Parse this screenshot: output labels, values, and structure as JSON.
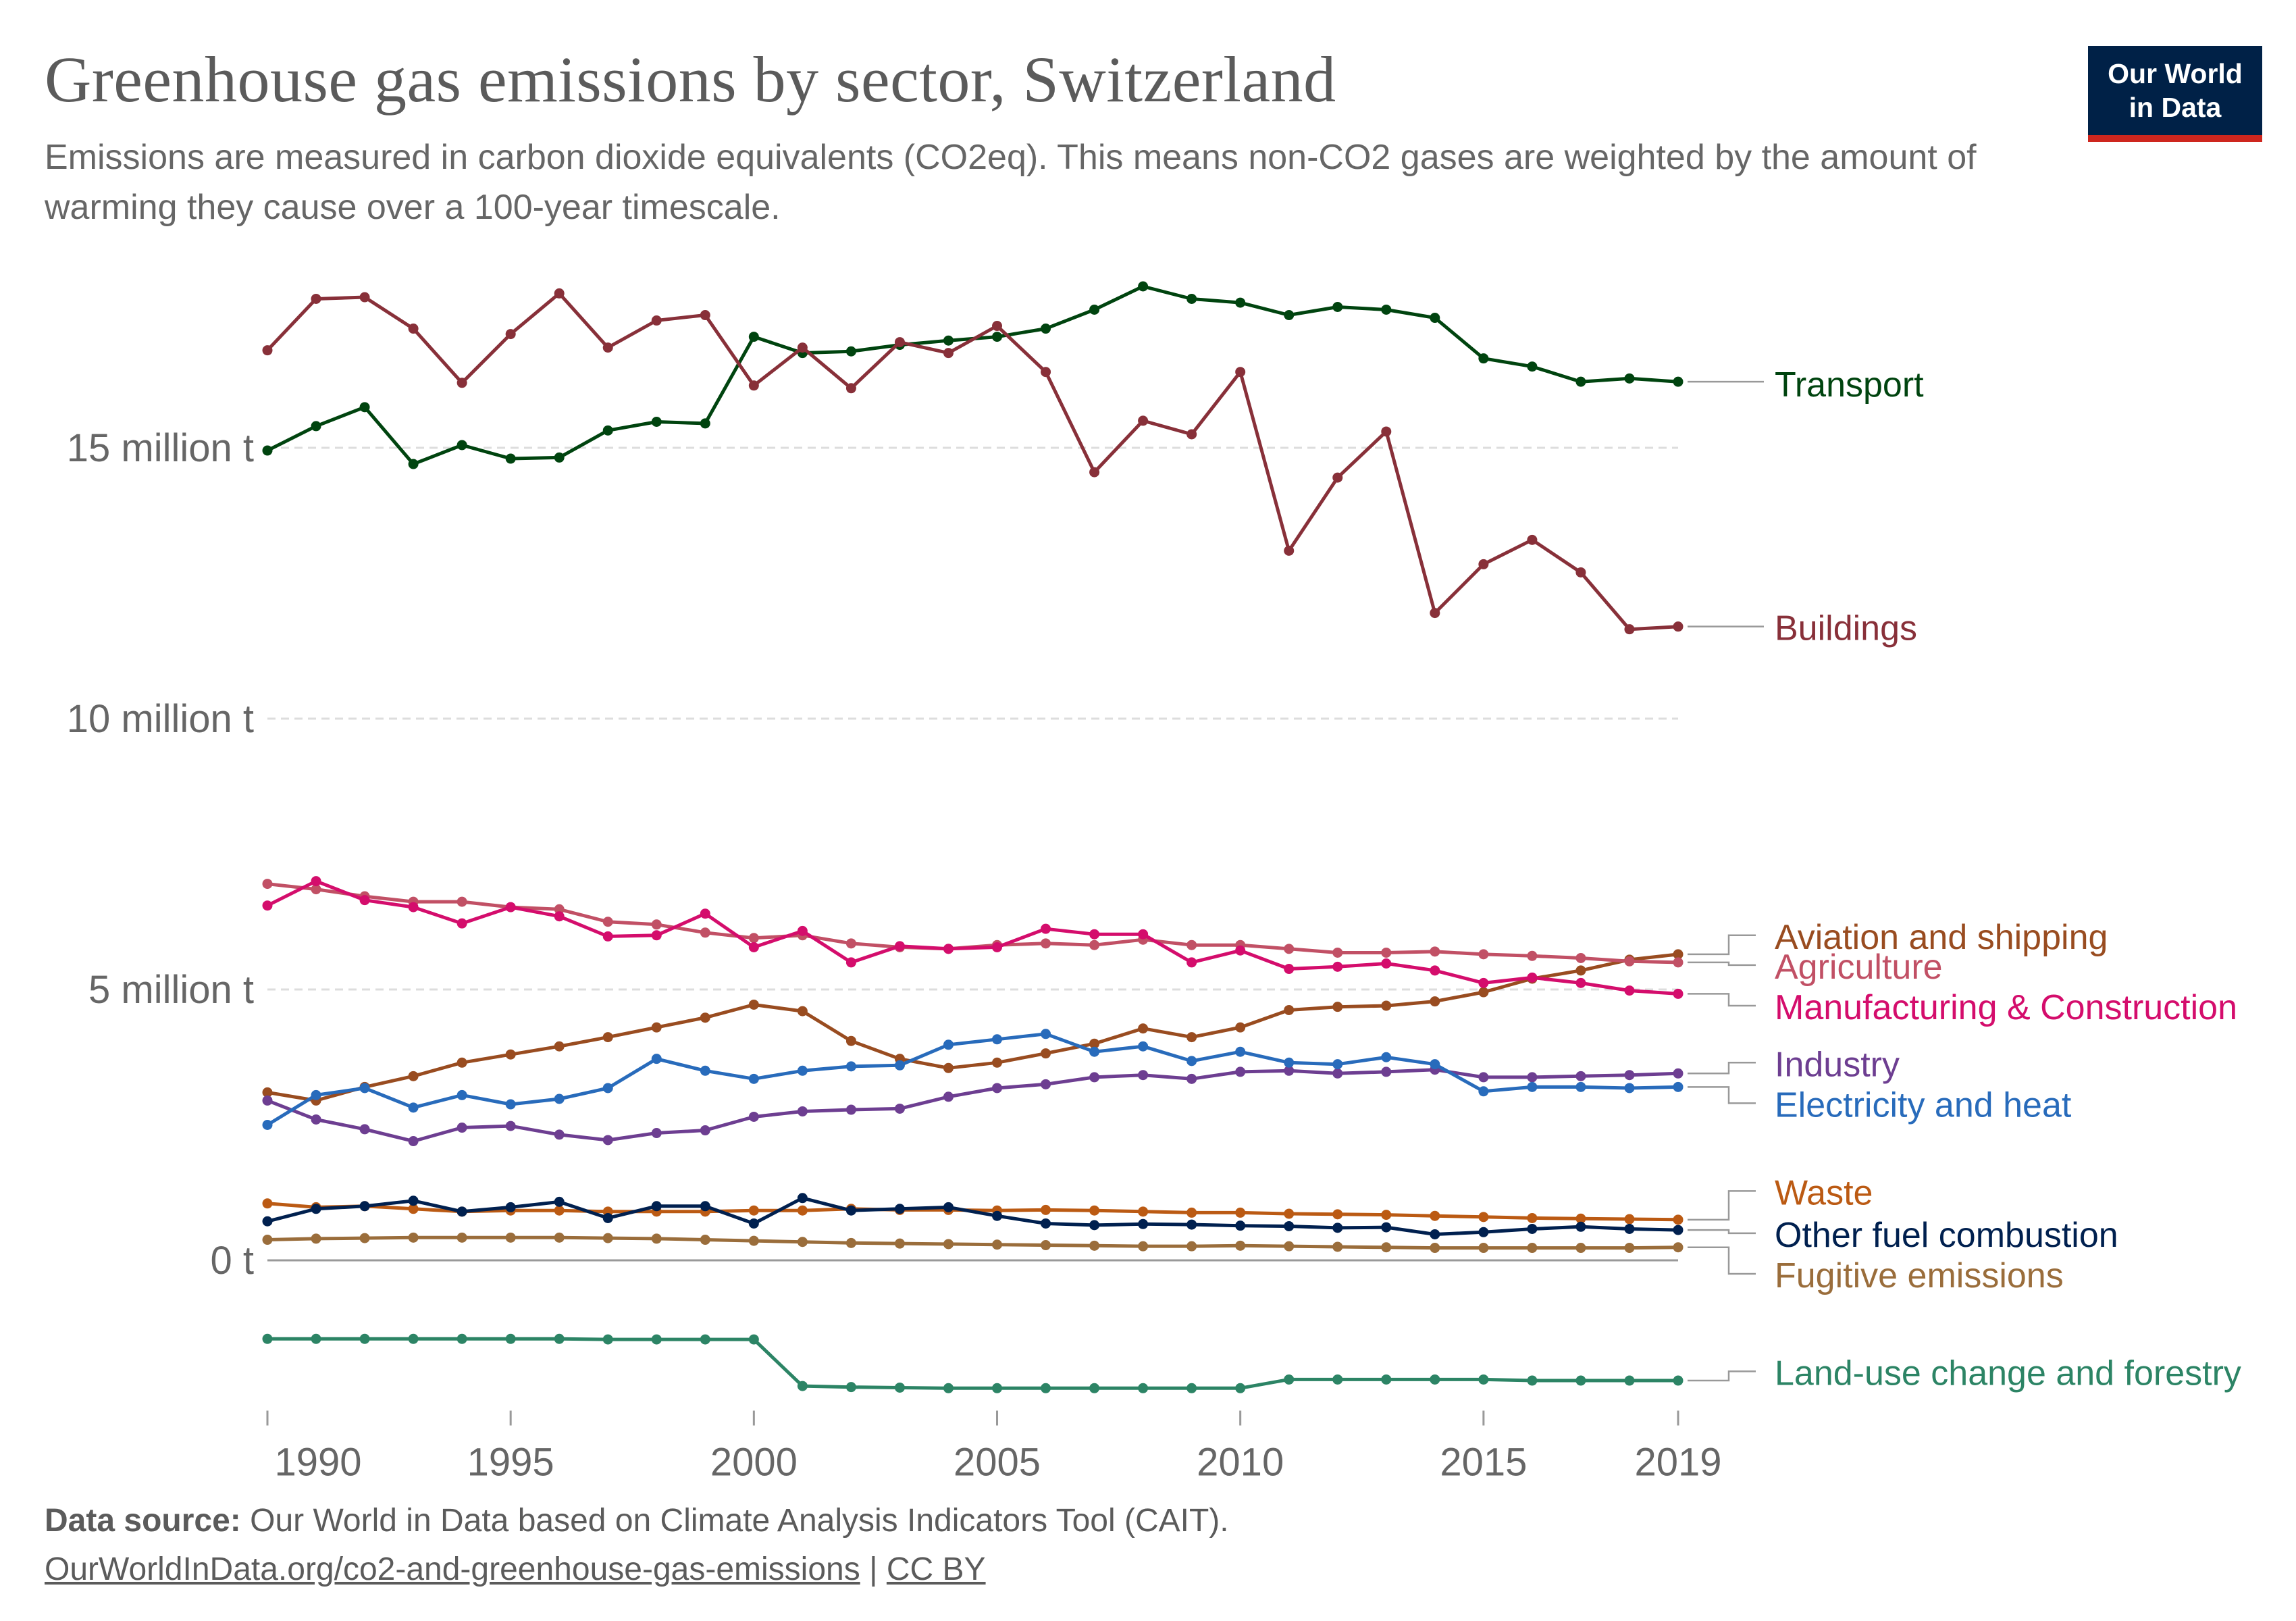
{
  "header": {
    "title": "Greenhouse gas emissions by sector, Switzerland",
    "subtitle": "Emissions are measured in carbon dioxide equivalents (CO2eq). This means non-CO2 gases are weighted by the amount of warming they cause over a 100-year timescale.",
    "logo_line1": "Our World",
    "logo_line2": "in Data"
  },
  "footer": {
    "source_label": "Data source:",
    "source_text": "Our World in Data based on Climate Analysis Indicators Tool (CAIT).",
    "url": "OurWorldInData.org/co2-and-greenhouse-gas-emissions",
    "separator": "|",
    "license": "CC BY"
  },
  "colors": {
    "brand": "#002147",
    "brand_accent": "#ce261e"
  },
  "chart_data": {
    "type": "line",
    "title": "Greenhouse gas emissions by sector, Switzerland",
    "xlabel": "",
    "ylabel": "",
    "xlim": [
      1990,
      2019
    ],
    "ylim": [
      -2.6,
      18
    ],
    "grid": "horizontal dashed",
    "legend": "right, labels at line ends",
    "x": [
      1990,
      1991,
      1992,
      1993,
      1994,
      1995,
      1996,
      1997,
      1998,
      1999,
      2000,
      2001,
      2002,
      2003,
      2004,
      2005,
      2006,
      2007,
      2008,
      2009,
      2010,
      2011,
      2012,
      2013,
      2014,
      2015,
      2016,
      2017,
      2018,
      2019
    ],
    "x_ticks": [
      {
        "value": 1990,
        "label": "1990"
      },
      {
        "value": 1995,
        "label": "1995"
      },
      {
        "value": 2000,
        "label": "2000"
      },
      {
        "value": 2005,
        "label": "2005"
      },
      {
        "value": 2010,
        "label": "2010"
      },
      {
        "value": 2015,
        "label": "2015"
      },
      {
        "value": 2019,
        "label": "2019"
      }
    ],
    "y_ticks": [
      {
        "value": 0,
        "label": "0 t"
      },
      {
        "value": 5,
        "label": "5 million t"
      },
      {
        "value": 10,
        "label": "10 million t"
      },
      {
        "value": 15,
        "label": "15 million t"
      }
    ],
    "series": [
      {
        "name": "Transport",
        "color": "#00440f",
        "label_value": 16.2,
        "values": [
          14.95,
          15.4,
          15.75,
          14.7,
          15.05,
          14.8,
          14.82,
          15.32,
          15.48,
          15.45,
          17.05,
          16.75,
          16.78,
          16.9,
          16.98,
          17.05,
          17.2,
          17.55,
          17.98,
          17.75,
          17.68,
          17.45,
          17.6,
          17.55,
          17.4,
          16.65,
          16.5,
          16.22,
          16.28,
          16.22
        ]
      },
      {
        "name": "Buildings",
        "color": "#883039",
        "label_value": 11.7,
        "values": [
          16.8,
          17.75,
          17.78,
          17.2,
          16.2,
          17.1,
          17.85,
          16.85,
          17.35,
          17.45,
          16.15,
          16.85,
          16.1,
          16.95,
          16.75,
          17.25,
          16.4,
          14.55,
          15.5,
          15.25,
          16.4,
          13.1,
          14.45,
          15.3,
          11.95,
          12.85,
          13.3,
          12.7,
          11.65,
          11.7
        ]
      },
      {
        "name": "Aviation and shipping",
        "color": "#994c20",
        "label_value": 6.0,
        "values": [
          3.1,
          2.95,
          3.2,
          3.4,
          3.65,
          3.8,
          3.95,
          4.12,
          4.3,
          4.48,
          4.72,
          4.6,
          4.05,
          3.72,
          3.55,
          3.65,
          3.82,
          4.0,
          4.28,
          4.12,
          4.3,
          4.62,
          4.68,
          4.7,
          4.78,
          4.95,
          5.2,
          5.35,
          5.55,
          5.65
        ]
      },
      {
        "name": "Agriculture",
        "color": "#c15065",
        "label_value": 5.45,
        "values": [
          6.95,
          6.85,
          6.72,
          6.62,
          6.62,
          6.52,
          6.48,
          6.25,
          6.2,
          6.05,
          5.95,
          6.0,
          5.85,
          5.78,
          5.75,
          5.82,
          5.85,
          5.82,
          5.92,
          5.82,
          5.82,
          5.75,
          5.68,
          5.68,
          5.7,
          5.65,
          5.62,
          5.58,
          5.52,
          5.5
        ]
      },
      {
        "name": "Manufacturing & Construction",
        "color": "#d40d6c",
        "label_value": 4.7,
        "values": [
          6.55,
          7.0,
          6.65,
          6.52,
          6.22,
          6.52,
          6.35,
          5.98,
          6.0,
          6.4,
          5.78,
          6.08,
          5.5,
          5.8,
          5.75,
          5.78,
          6.12,
          6.02,
          6.02,
          5.5,
          5.72,
          5.38,
          5.42,
          5.48,
          5.35,
          5.12,
          5.22,
          5.12,
          4.98,
          4.92
        ]
      },
      {
        "name": "Industry",
        "color": "#6d3e91",
        "label_value": 3.65,
        "values": [
          2.95,
          2.6,
          2.42,
          2.2,
          2.45,
          2.48,
          2.32,
          2.22,
          2.35,
          2.4,
          2.65,
          2.75,
          2.78,
          2.8,
          3.02,
          3.18,
          3.25,
          3.38,
          3.42,
          3.35,
          3.48,
          3.5,
          3.45,
          3.48,
          3.52,
          3.38,
          3.38,
          3.4,
          3.42,
          3.45
        ]
      },
      {
        "name": "Electricity and heat",
        "color": "#286bbb",
        "label_value": 2.9,
        "values": [
          2.5,
          3.05,
          3.18,
          2.82,
          3.05,
          2.88,
          2.98,
          3.18,
          3.72,
          3.5,
          3.35,
          3.5,
          3.58,
          3.6,
          3.98,
          4.08,
          4.18,
          3.85,
          3.95,
          3.68,
          3.85,
          3.65,
          3.62,
          3.75,
          3.62,
          3.12,
          3.2,
          3.2,
          3.18,
          3.2
        ]
      },
      {
        "name": "Waste",
        "color": "#bb5a13",
        "label_value": 1.28,
        "values": [
          1.05,
          0.98,
          1.0,
          0.95,
          0.9,
          0.92,
          0.92,
          0.9,
          0.9,
          0.9,
          0.92,
          0.92,
          0.95,
          0.93,
          0.93,
          0.92,
          0.93,
          0.92,
          0.9,
          0.88,
          0.88,
          0.86,
          0.85,
          0.84,
          0.82,
          0.8,
          0.78,
          0.77,
          0.76,
          0.75
        ]
      },
      {
        "name": "Other fuel combustion",
        "color": "#00204f",
        "label_value": 0.5,
        "values": [
          0.72,
          0.95,
          1.0,
          1.1,
          0.9,
          0.98,
          1.08,
          0.78,
          1.0,
          1.0,
          0.68,
          1.15,
          0.92,
          0.95,
          0.98,
          0.82,
          0.68,
          0.65,
          0.67,
          0.66,
          0.64,
          0.63,
          0.6,
          0.61,
          0.48,
          0.52,
          0.58,
          0.62,
          0.58,
          0.56
        ]
      },
      {
        "name": "Fugitive emissions",
        "color": "#9a6d3b",
        "label_value": -0.25,
        "values": [
          0.38,
          0.4,
          0.41,
          0.42,
          0.42,
          0.42,
          0.42,
          0.41,
          0.4,
          0.38,
          0.36,
          0.34,
          0.32,
          0.31,
          0.3,
          0.29,
          0.28,
          0.27,
          0.26,
          0.26,
          0.27,
          0.26,
          0.25,
          0.24,
          0.23,
          0.23,
          0.23,
          0.23,
          0.23,
          0.24
        ]
      },
      {
        "name": "Land-use change and forestry",
        "color": "#2c8465",
        "label_value": -2.05,
        "values": [
          -1.45,
          -1.45,
          -1.45,
          -1.45,
          -1.45,
          -1.45,
          -1.45,
          -1.46,
          -1.46,
          -1.46,
          -1.46,
          -2.32,
          -2.34,
          -2.35,
          -2.36,
          -2.36,
          -2.36,
          -2.36,
          -2.36,
          -2.36,
          -2.36,
          -2.2,
          -2.2,
          -2.2,
          -2.2,
          -2.2,
          -2.22,
          -2.22,
          -2.22,
          -2.22
        ]
      }
    ]
  }
}
